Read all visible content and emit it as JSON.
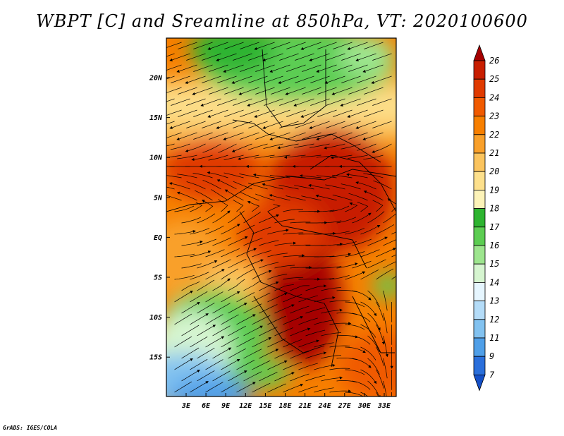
{
  "title": "WBPT [C] and Sreamline at 850hPa, VT: 2020100600",
  "credit": "GrADS: IGES/COLA",
  "map": {
    "lat_labels": [
      "20N",
      "15N",
      "10N",
      "5N",
      "EQ",
      "5S",
      "10S",
      "15S"
    ],
    "lon_labels": [
      "3E",
      "6E",
      "9E",
      "12E",
      "15E",
      "18E",
      "21E",
      "24E",
      "27E",
      "30E",
      "33E"
    ]
  },
  "colorbar": {
    "levels": [
      "26",
      "25",
      "24",
      "23",
      "22",
      "21",
      "20",
      "19",
      "18",
      "17",
      "16",
      "15",
      "14",
      "13",
      "12",
      "11",
      "9",
      "7"
    ],
    "colors": [
      "#a50000",
      "#c81e00",
      "#e03a00",
      "#f05a00",
      "#f77f00",
      "#f9a02a",
      "#fbc45e",
      "#fde08c",
      "#fdf3b8",
      "#2db430",
      "#5ccd52",
      "#9de58e",
      "#d6f5d0",
      "#e6f6ff",
      "#b4dcf8",
      "#82c2f0",
      "#4f9fe8",
      "#2a6fdb",
      "#1450c8"
    ]
  }
}
